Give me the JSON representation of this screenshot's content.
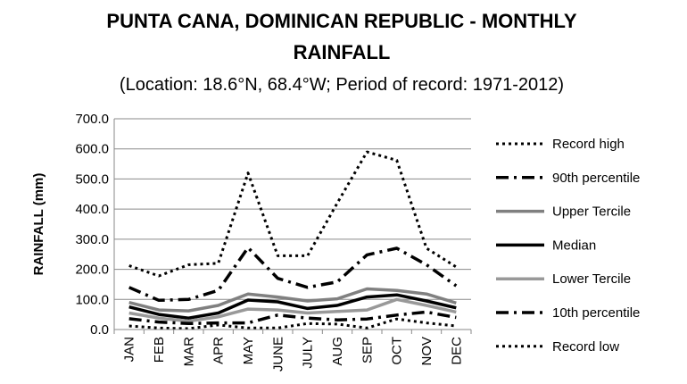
{
  "chart_data": {
    "type": "line",
    "title_line1": "PUNTA CANA, DOMINICAN REPUBLIC - MONTHLY",
    "title_line2": "RAINFALL",
    "subtitle": "(Location: 18.6°N, 68.4°W; Period of record: 1971-2012)",
    "xlabel": "",
    "ylabel": "RAINFALL (mm)",
    "ylim": [
      0,
      700
    ],
    "yticks": [
      "0.0",
      "100.0",
      "200.0",
      "300.0",
      "400.0",
      "500.0",
      "600.0",
      "700.0"
    ],
    "grid": true,
    "legend_position": "right",
    "categories": [
      "JAN",
      "FEB",
      "MAR",
      "APR",
      "MAY",
      "JUNE",
      "JULY",
      "AUG",
      "SEP",
      "OCT",
      "NOV",
      "DEC"
    ],
    "series": [
      {
        "name": "Record high",
        "style": "dotted",
        "color": "#000000",
        "values": [
          212,
          178,
          215,
          220,
          520,
          245,
          245,
          420,
          590,
          562,
          270,
          208
        ]
      },
      {
        "name": "90th percentile",
        "style": "dashdot",
        "color": "#000000",
        "values": [
          140,
          97,
          100,
          130,
          272,
          170,
          140,
          158,
          248,
          270,
          215,
          145
        ]
      },
      {
        "name": "Upper Tercile",
        "style": "solid",
        "color": "#808080",
        "values": [
          90,
          65,
          62,
          80,
          118,
          108,
          95,
          102,
          135,
          130,
          118,
          88
        ]
      },
      {
        "name": "Median",
        "style": "solid",
        "color": "#000000",
        "values": [
          75,
          50,
          38,
          55,
          98,
          92,
          70,
          80,
          108,
          115,
          95,
          72
        ]
      },
      {
        "name": "Lower Tercile",
        "style": "solid",
        "color": "#999999",
        "values": [
          55,
          38,
          28,
          42,
          68,
          65,
          55,
          60,
          65,
          100,
          80,
          58
        ]
      },
      {
        "name": "10th percentile",
        "style": "dashdot",
        "color": "#000000",
        "values": [
          36,
          25,
          20,
          22,
          22,
          48,
          38,
          32,
          35,
          48,
          58,
          40
        ]
      },
      {
        "name": "Record low",
        "style": "dotted",
        "color": "#000000",
        "values": [
          12,
          5,
          3,
          15,
          5,
          5,
          20,
          18,
          5,
          35,
          22,
          12
        ]
      }
    ]
  }
}
